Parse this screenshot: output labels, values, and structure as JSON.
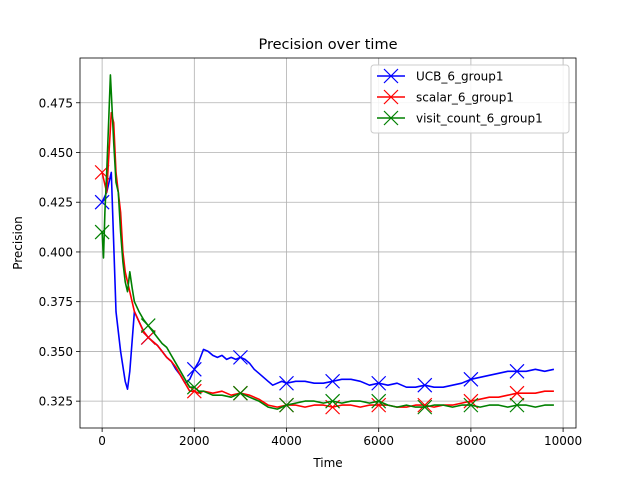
{
  "chart_data": {
    "type": "line",
    "title": "Precision over time",
    "xlabel": "Time",
    "ylabel": "Precision",
    "xlim": [
      -480,
      10280
    ],
    "ylim": [
      0.3115,
      0.4975
    ],
    "xticks": [
      0,
      2000,
      4000,
      6000,
      8000,
      10000
    ],
    "xtick_labels": [
      "0",
      "2000",
      "4000",
      "6000",
      "8000",
      "10000"
    ],
    "yticks": [
      0.325,
      0.35,
      0.375,
      0.4,
      0.425,
      0.45,
      0.475
    ],
    "ytick_labels": [
      "0.325",
      "0.350",
      "0.375",
      "0.400",
      "0.425",
      "0.450",
      "0.475"
    ],
    "grid": true,
    "legend_position": "top-right",
    "series": [
      {
        "name": "UCB_6_group1",
        "color": "#0000ff",
        "x": [
          0,
          100,
          200,
          300,
          400,
          500,
          550,
          600,
          700,
          800,
          900,
          1000,
          1100,
          1200,
          1300,
          1400,
          1500,
          1600,
          1700,
          1800,
          1900,
          2000,
          2100,
          2200,
          2300,
          2400,
          2500,
          2600,
          2700,
          2800,
          2900,
          3000,
          3100,
          3200,
          3300,
          3400,
          3500,
          3600,
          3700,
          3800,
          3900,
          4000,
          4200,
          4400,
          4600,
          4800,
          5000,
          5200,
          5400,
          5600,
          5800,
          6000,
          6200,
          6400,
          6600,
          6800,
          7000,
          7200,
          7400,
          7600,
          7800,
          8000,
          8200,
          8400,
          8600,
          8800,
          9000,
          9200,
          9400,
          9600,
          9800
        ],
        "values": [
          0.425,
          0.43,
          0.44,
          0.37,
          0.35,
          0.335,
          0.331,
          0.34,
          0.37,
          0.365,
          0.36,
          0.357,
          0.355,
          0.353,
          0.35,
          0.347,
          0.345,
          0.341,
          0.338,
          0.334,
          0.336,
          0.341,
          0.345,
          0.351,
          0.35,
          0.348,
          0.347,
          0.348,
          0.346,
          0.347,
          0.346,
          0.347,
          0.346,
          0.344,
          0.341,
          0.339,
          0.337,
          0.335,
          0.333,
          0.334,
          0.335,
          0.334,
          0.335,
          0.335,
          0.334,
          0.334,
          0.335,
          0.336,
          0.336,
          0.335,
          0.333,
          0.334,
          0.333,
          0.334,
          0.332,
          0.332,
          0.333,
          0.332,
          0.332,
          0.333,
          0.334,
          0.336,
          0.337,
          0.338,
          0.339,
          0.34,
          0.34,
          0.34,
          0.341,
          0.34,
          0.341
        ],
        "markers_x": [
          0,
          1000,
          2000,
          3000,
          4000,
          5000,
          6000,
          7000,
          8000,
          9000
        ],
        "markers_y": [
          0.425,
          0.357,
          0.341,
          0.347,
          0.334,
          0.335,
          0.334,
          0.333,
          0.336,
          0.34
        ]
      },
      {
        "name": "scalar_6_group1",
        "color": "#ff0000",
        "x": [
          0,
          100,
          150,
          200,
          250,
          300,
          350,
          400,
          450,
          500,
          550,
          600,
          650,
          700,
          800,
          900,
          1000,
          1100,
          1200,
          1300,
          1400,
          1500,
          1600,
          1700,
          1800,
          1900,
          2000,
          2100,
          2200,
          2400,
          2600,
          2800,
          3000,
          3200,
          3400,
          3600,
          3800,
          4000,
          4200,
          4400,
          4600,
          4800,
          5000,
          5200,
          5400,
          5600,
          5800,
          6000,
          6200,
          6400,
          6600,
          6800,
          7000,
          7200,
          7400,
          7600,
          7800,
          8000,
          8200,
          8400,
          8600,
          8800,
          9000,
          9200,
          9400,
          9600,
          9800
        ],
        "values": [
          0.44,
          0.43,
          0.45,
          0.47,
          0.465,
          0.44,
          0.43,
          0.42,
          0.4,
          0.39,
          0.385,
          0.38,
          0.375,
          0.37,
          0.365,
          0.36,
          0.357,
          0.355,
          0.353,
          0.35,
          0.347,
          0.345,
          0.342,
          0.338,
          0.334,
          0.33,
          0.33,
          0.329,
          0.33,
          0.329,
          0.33,
          0.328,
          0.329,
          0.328,
          0.326,
          0.323,
          0.322,
          0.323,
          0.323,
          0.322,
          0.323,
          0.323,
          0.322,
          0.323,
          0.323,
          0.322,
          0.323,
          0.323,
          0.323,
          0.322,
          0.322,
          0.323,
          0.323,
          0.322,
          0.323,
          0.323,
          0.324,
          0.325,
          0.326,
          0.327,
          0.327,
          0.328,
          0.329,
          0.329,
          0.329,
          0.33,
          0.33
        ],
        "markers_x": [
          0,
          1000,
          2000,
          3000,
          4000,
          5000,
          6000,
          7000,
          8000,
          9000
        ],
        "markers_y": [
          0.44,
          0.357,
          0.33,
          0.329,
          0.323,
          0.322,
          0.323,
          0.323,
          0.325,
          0.329
        ]
      },
      {
        "name": "visit_count_6_group1",
        "color": "#008000",
        "x": [
          0,
          30,
          60,
          100,
          150,
          180,
          200,
          250,
          300,
          350,
          400,
          450,
          500,
          550,
          600,
          650,
          700,
          800,
          900,
          1000,
          1100,
          1200,
          1300,
          1400,
          1500,
          1600,
          1700,
          1800,
          1900,
          2000,
          2100,
          2200,
          2400,
          2600,
          2800,
          3000,
          3200,
          3400,
          3600,
          3800,
          4000,
          4200,
          4400,
          4600,
          4800,
          5000,
          5200,
          5400,
          5600,
          5800,
          6000,
          6200,
          6400,
          6600,
          6800,
          7000,
          7200,
          7400,
          7600,
          7800,
          8000,
          8200,
          8400,
          8600,
          8800,
          9000,
          9200,
          9400,
          9600,
          9800
        ],
        "values": [
          0.41,
          0.397,
          0.42,
          0.44,
          0.47,
          0.489,
          0.48,
          0.455,
          0.435,
          0.43,
          0.41,
          0.395,
          0.385,
          0.38,
          0.39,
          0.382,
          0.375,
          0.37,
          0.366,
          0.363,
          0.36,
          0.357,
          0.354,
          0.352,
          0.348,
          0.344,
          0.34,
          0.336,
          0.332,
          0.332,
          0.33,
          0.33,
          0.328,
          0.328,
          0.327,
          0.329,
          0.327,
          0.325,
          0.322,
          0.321,
          0.323,
          0.324,
          0.325,
          0.325,
          0.324,
          0.325,
          0.324,
          0.325,
          0.325,
          0.324,
          0.325,
          0.323,
          0.322,
          0.323,
          0.322,
          0.322,
          0.323,
          0.323,
          0.322,
          0.323,
          0.323,
          0.322,
          0.323,
          0.323,
          0.322,
          0.323,
          0.323,
          0.322,
          0.323,
          0.323
        ],
        "markers_x": [
          0,
          1000,
          2000,
          3000,
          4000,
          5000,
          6000,
          7000,
          8000,
          9000
        ],
        "markers_y": [
          0.41,
          0.363,
          0.332,
          0.329,
          0.323,
          0.325,
          0.325,
          0.322,
          0.323,
          0.323
        ]
      }
    ]
  }
}
